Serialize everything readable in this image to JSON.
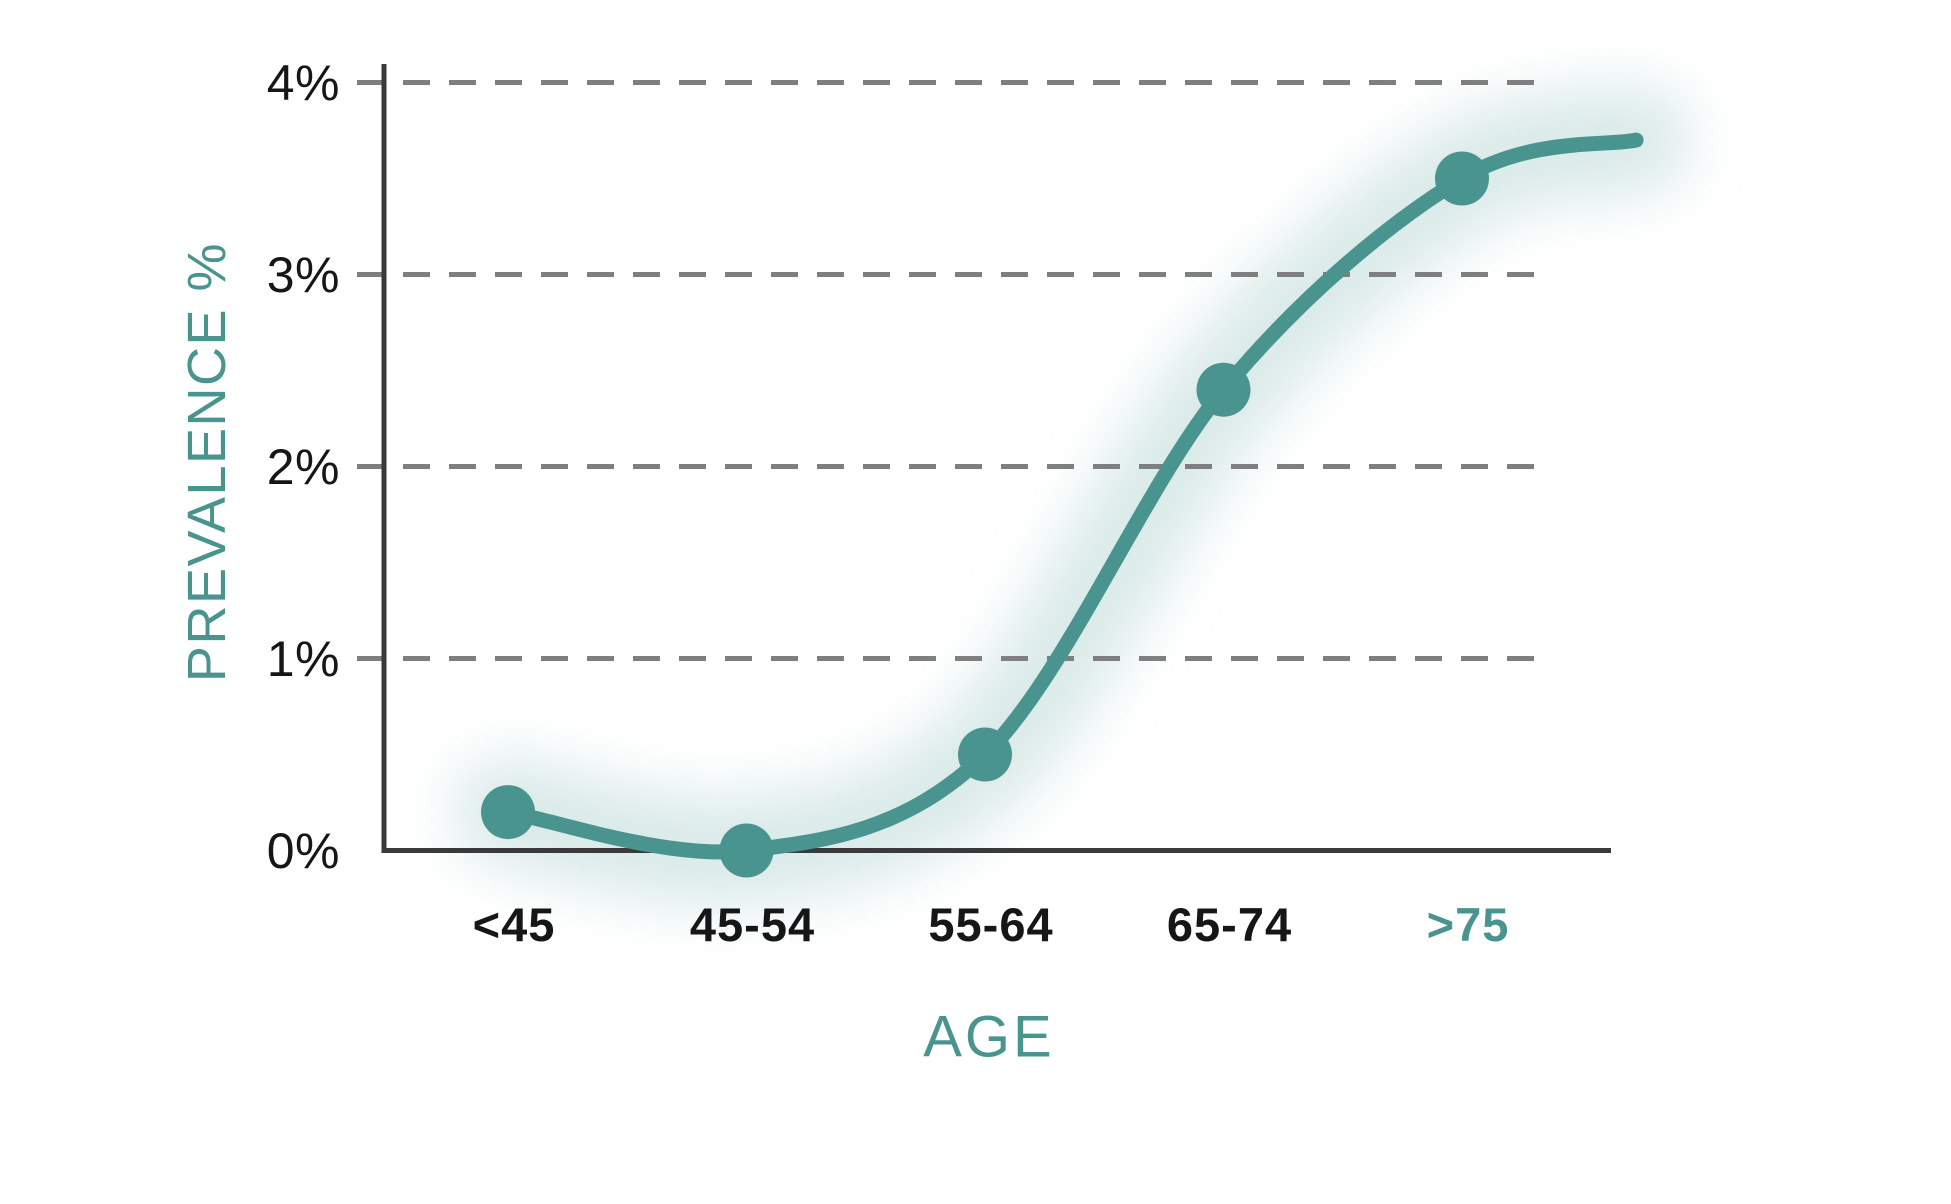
{
  "chart_data": {
    "type": "line",
    "xlabel": "AGE",
    "ylabel": "PREVALENCE %",
    "categories": [
      "<45",
      "45-54",
      "55-64",
      "65-74",
      ">75"
    ],
    "values": [
      0.2,
      0.0,
      0.5,
      2.4,
      3.5
    ],
    "curve_extension_value": 3.7,
    "highlighted_category": ">75",
    "ytick_labels": [
      "0%",
      "1%",
      "2%",
      "3%",
      "4%"
    ],
    "ylim": [
      0,
      4
    ],
    "grid": "horizontal-dashed",
    "legend_position": "none",
    "colors": {
      "line": "#4A948F",
      "point": "#4A948F",
      "glow": "#D6E8E6",
      "axis": "#3A3A3A",
      "gridline": "#7F7F7F",
      "tick_label": "#161616",
      "accent_label": "#4A948F"
    }
  }
}
